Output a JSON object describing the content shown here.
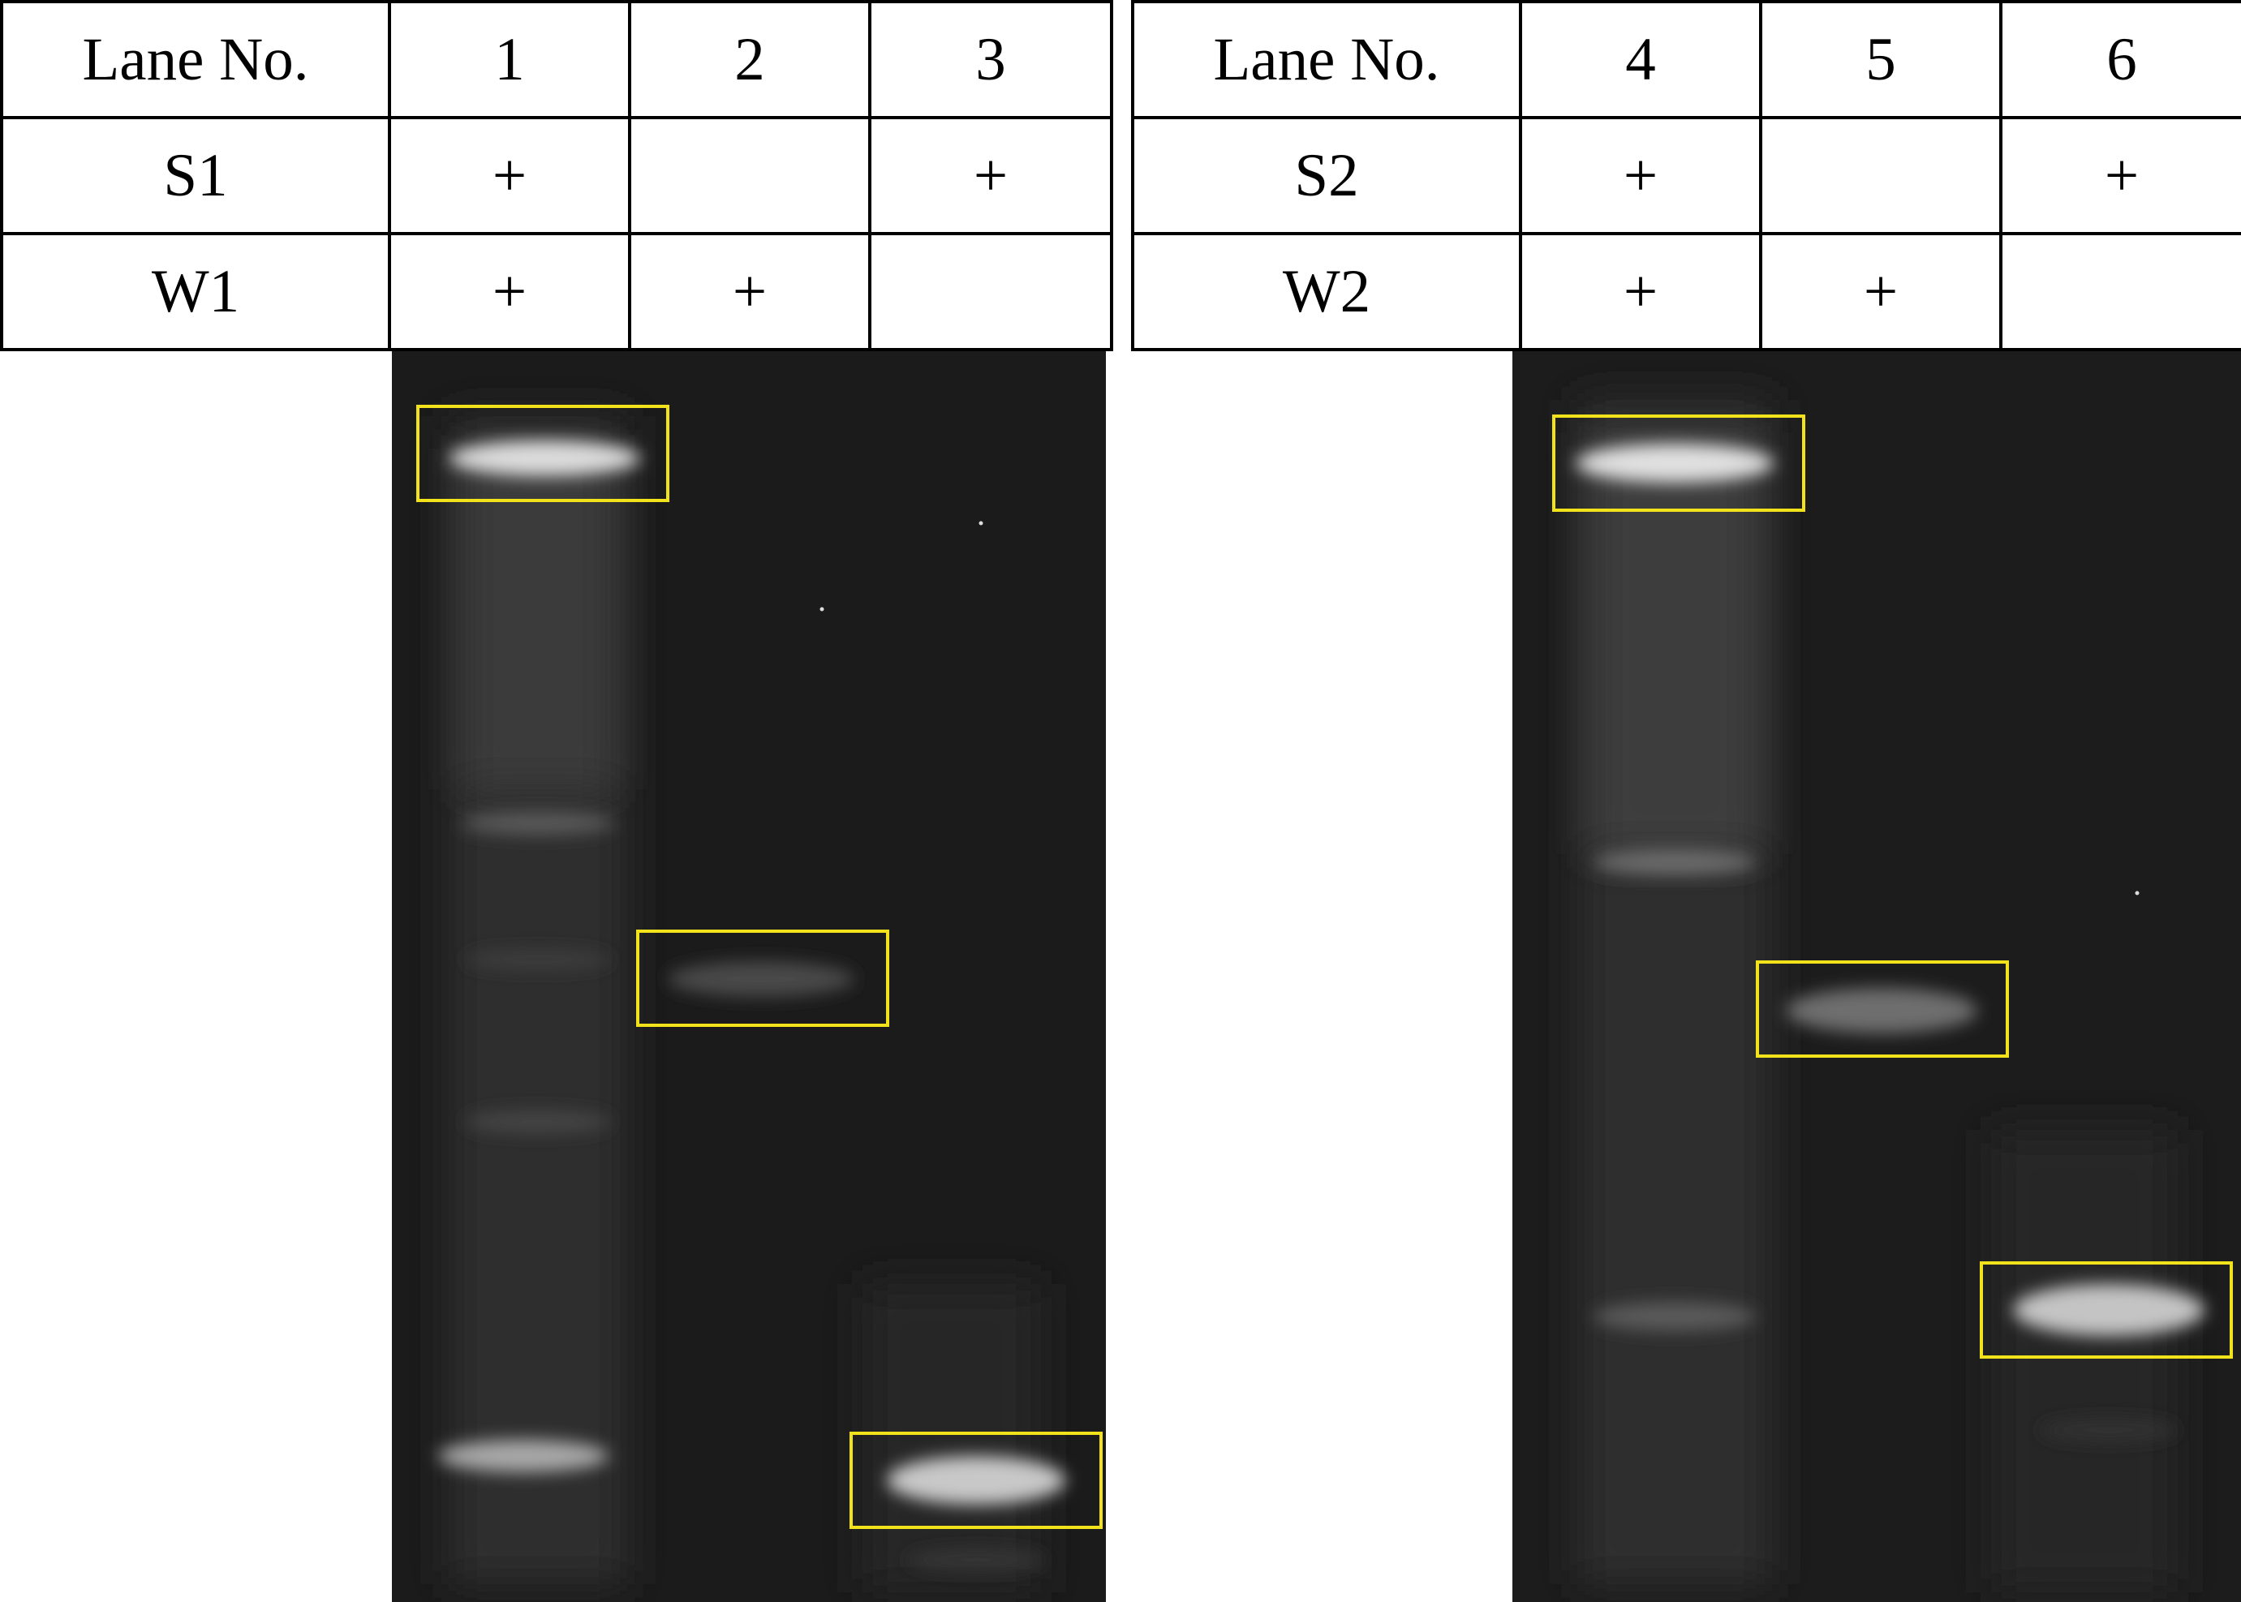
{
  "left_table": {
    "header": [
      "Lane No.",
      "1",
      "2",
      "3"
    ],
    "rows": [
      [
        "S1",
        "+",
        "",
        "+"
      ],
      [
        "W1",
        "+",
        "+",
        ""
      ]
    ]
  },
  "right_table": {
    "header": [
      "Lane No.",
      "4",
      "5",
      "6"
    ],
    "rows": [
      [
        "S2",
        "+",
        "",
        "+"
      ],
      [
        "W2",
        "+",
        "+",
        ""
      ]
    ]
  },
  "colors": {
    "gel_background": "#1c1c1c",
    "band_glow": "#e6e6e6",
    "highlight_box": "#f2e21b",
    "table_border": "#000000"
  }
}
